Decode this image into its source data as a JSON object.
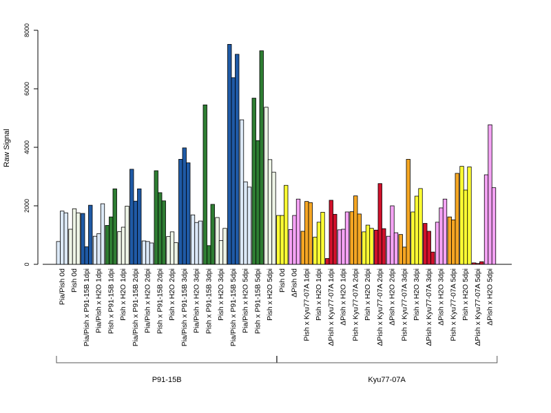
{
  "chart_data": {
    "type": "bar",
    "title": "",
    "xlabel": "",
    "ylabel": "Raw Signal",
    "ylim": [
      0,
      8000
    ],
    "yticks": [
      0,
      2000,
      4000,
      6000,
      8000
    ],
    "grid": false,
    "categories": [
      "Pia/Pish 0d",
      "Pish 0d",
      "Pia/Pish x P91-15B 1dpi",
      "Pia/Pish x H2O 1dpi",
      "Pish x P91-15B 1dpi",
      "Pish x H2O 1dpi",
      "Pia/Pish x P91-15B 2dpi",
      "Pia/Pish x H2O 2dpi",
      "Pish x P91-15B 2dpi",
      "Pish x H2O 2dpi",
      "Pia/Pish x P91-15B 3dpi",
      "Pia/Pish x H2O 3dpi",
      "Pish x P91-15B 3dpi",
      "Pish x H2O 3dpi",
      "Pia/Pish x P91-15B 5dpi",
      "Pia/Pish x H2O 5dpi",
      "Pish x P91-15B 5dpi",
      "Pish x H2O 5dpi",
      "Pish 0d",
      "ΔPish 0d",
      "Pish x Kyu77-07A 1dpi",
      "Pish x H2O 1dpi",
      "ΔPish x Kyu77-07A 1dpi",
      "ΔPish x H2O 1dpi",
      "Pish x Kyu77-07A 2dpi",
      "Pish x H2O 2dpi",
      "ΔPish x Kyu77-07A 2dpi",
      "ΔPish x H2O 2dpi",
      "Pish x Kyu77-07A 3dpi",
      "Pish x H2O 3dpi",
      "ΔPish x Kyu77-07A 3dpi",
      "ΔPish x H2O 3dpi",
      "Pish x Kyu77-07A 5dpi",
      "Pish x H2O 5dpi",
      "ΔPish x Kyu77-07A 5dpi",
      "ΔPish x H2O 5dpi"
    ],
    "values": [
      [
        780,
        1820,
        1760
      ],
      [
        1200,
        1900,
        1760
      ],
      [
        1740,
        600,
        2020
      ],
      [
        960,
        1050,
        2070
      ],
      [
        1330,
        1620,
        2580
      ],
      [
        1120,
        1270,
        1990
      ],
      [
        3250,
        2160,
        2580
      ],
      [
        800,
        780,
        730
      ],
      [
        3200,
        2450,
        2170
      ],
      [
        950,
        1110,
        740
      ],
      [
        3590,
        3980,
        3470
      ],
      [
        1690,
        1430,
        1480
      ],
      [
        5450,
        640,
        2050
      ],
      [
        1600,
        810,
        1230
      ],
      [
        7520,
        6380,
        7180
      ],
      [
        4940,
        2820,
        2640
      ],
      [
        5680,
        4230,
        7300
      ],
      [
        5370,
        3580,
        3150
      ],
      [
        1670,
        1670,
        2700
      ],
      [
        1190,
        1670,
        2230
      ],
      [
        1130,
        2150,
        2110
      ],
      [
        930,
        1440,
        1780
      ],
      [
        200,
        2190,
        1710
      ],
      [
        1180,
        1200,
        1790
      ],
      [
        1800,
        2340,
        1720
      ],
      [
        1110,
        1340,
        1230
      ],
      [
        1170,
        2760,
        1220
      ],
      [
        960,
        2000,
        1080
      ],
      [
        1020,
        590,
        3590
      ],
      [
        1790,
        2330,
        2590
      ],
      [
        1400,
        1130,
        420
      ],
      [
        1440,
        1930,
        2230
      ],
      [
        1620,
        1520,
        3110
      ],
      [
        3350,
        2540,
        3330
      ],
      [
        50,
        30,
        90
      ],
      [
        3060,
        4770,
        2620
      ]
    ],
    "colors": [
      "#dce9f7",
      "#eef5e7",
      "#1f5aa6",
      "#dce9f7",
      "#2e7d32",
      "#eef5e7",
      "#1f5aa6",
      "#dce9f7",
      "#2e7d32",
      "#eef5e7",
      "#1f5aa6",
      "#dce9f7",
      "#2e7d32",
      "#eef5e7",
      "#1f5aa6",
      "#dce9f7",
      "#2e7d32",
      "#eef5e7",
      "#ffff33",
      "#f5a3f5",
      "#f5a623",
      "#ffff33",
      "#d0112b",
      "#f5a3f5",
      "#f5a623",
      "#ffff33",
      "#d0112b",
      "#f5a3f5",
      "#f5a623",
      "#ffff33",
      "#d0112b",
      "#f5a3f5",
      "#f5a623",
      "#ffff33",
      "#d0112b",
      "#f5a3f5"
    ],
    "groups": [
      {
        "name": "P91-15B",
        "from": 0,
        "to": 17
      },
      {
        "name": "Kyu77-07A",
        "from": 18,
        "to": 35
      }
    ]
  }
}
